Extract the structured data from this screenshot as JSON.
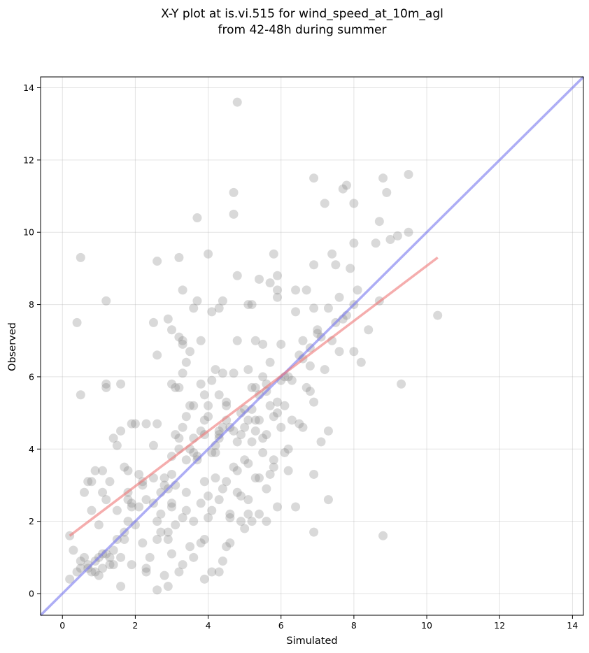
{
  "chart_data": {
    "type": "scatter",
    "title_lines": [
      "X-Y plot at is.vi.515 for wind_speed_at_10m_agl",
      "from 42-48h during summer"
    ],
    "xlabel": "Simulated",
    "ylabel": "Observed",
    "xlim": [
      -0.6,
      14.3
    ],
    "ylim": [
      -0.6,
      14.3
    ],
    "xticks": [
      "0",
      "2",
      "4",
      "6",
      "8",
      "10",
      "12",
      "14"
    ],
    "yticks": [
      "0",
      "2",
      "4",
      "6",
      "8",
      "10",
      "12",
      "14"
    ],
    "grid": true,
    "point_color": "#808080",
    "identity_line_color": "#7777ee",
    "fit_line_color": "#ee7777",
    "fit_line": {
      "x": [
        0.2,
        10.3
      ],
      "y": [
        1.6,
        9.3
      ]
    },
    "points": [
      [
        0.2,
        1.6
      ],
      [
        0.2,
        0.4
      ],
      [
        0.3,
        1.2
      ],
      [
        0.4,
        0.6
      ],
      [
        0.5,
        0.9
      ],
      [
        0.6,
        1.0
      ],
      [
        0.7,
        0.7
      ],
      [
        0.6,
        2.8
      ],
      [
        0.7,
        3.1
      ],
      [
        0.8,
        3.1
      ],
      [
        0.8,
        2.3
      ],
      [
        0.9,
        3.4
      ],
      [
        0.9,
        0.6
      ],
      [
        1.0,
        1.0
      ],
      [
        1.0,
        1.9
      ],
      [
        1.1,
        2.8
      ],
      [
        1.1,
        3.4
      ],
      [
        1.2,
        2.6
      ],
      [
        1.2,
        1.1
      ],
      [
        1.3,
        0.8
      ],
      [
        1.3,
        3.1
      ],
      [
        1.4,
        4.3
      ],
      [
        1.4,
        1.2
      ],
      [
        1.5,
        4.1
      ],
      [
        1.6,
        4.5
      ],
      [
        1.6,
        1.0
      ],
      [
        1.7,
        1.5
      ],
      [
        1.7,
        3.5
      ],
      [
        1.8,
        3.4
      ],
      [
        1.8,
        2.6
      ],
      [
        1.9,
        2.4
      ],
      [
        1.6,
        0.2
      ],
      [
        1.2,
        5.8
      ],
      [
        1.2,
        5.7
      ],
      [
        1.6,
        5.8
      ],
      [
        1.2,
        8.1
      ],
      [
        0.5,
        9.3
      ],
      [
        0.4,
        7.5
      ],
      [
        0.5,
        5.5
      ],
      [
        2.0,
        4.7
      ],
      [
        2.1,
        3.3
      ],
      [
        2.2,
        3.1
      ],
      [
        2.2,
        1.4
      ],
      [
        2.3,
        0.6
      ],
      [
        2.4,
        1.0
      ],
      [
        2.5,
        3.2
      ],
      [
        2.5,
        4.1
      ],
      [
        2.6,
        2.0
      ],
      [
        2.7,
        2.2
      ],
      [
        2.7,
        1.7
      ],
      [
        2.8,
        3.0
      ],
      [
        2.8,
        0.5
      ],
      [
        2.9,
        0.2
      ],
      [
        2.9,
        1.7
      ],
      [
        3.0,
        2.4
      ],
      [
        3.0,
        3.8
      ],
      [
        3.1,
        4.4
      ],
      [
        3.1,
        5.7
      ],
      [
        3.2,
        4.0
      ],
      [
        3.2,
        7.1
      ],
      [
        3.3,
        7.0
      ],
      [
        3.3,
        6.1
      ],
      [
        3.4,
        6.4
      ],
      [
        3.4,
        2.8
      ],
      [
        3.5,
        1.3
      ],
      [
        3.5,
        4.0
      ],
      [
        3.6,
        5.2
      ],
      [
        3.7,
        3.8
      ],
      [
        3.8,
        4.5
      ],
      [
        3.8,
        2.5
      ],
      [
        3.9,
        1.5
      ],
      [
        3.9,
        4.8
      ],
      [
        4.0,
        5.2
      ],
      [
        4.0,
        2.7
      ],
      [
        4.1,
        2.3
      ],
      [
        4.2,
        3.9
      ],
      [
        4.2,
        6.2
      ],
      [
        4.3,
        4.4
      ],
      [
        4.3,
        2.6
      ],
      [
        4.4,
        0.9
      ],
      [
        4.5,
        5.2
      ],
      [
        4.5,
        3.1
      ],
      [
        4.6,
        2.2
      ],
      [
        4.6,
        1.4
      ],
      [
        4.7,
        4.5
      ],
      [
        4.7,
        6.1
      ],
      [
        4.8,
        7.0
      ],
      [
        4.8,
        2.8
      ],
      [
        4.9,
        4.4
      ],
      [
        4.9,
        2.0
      ],
      [
        5.0,
        3.7
      ],
      [
        5.0,
        5.1
      ],
      [
        5.1,
        6.2
      ],
      [
        5.1,
        2.6
      ],
      [
        5.2,
        4.2
      ],
      [
        5.2,
        5.7
      ],
      [
        5.3,
        4.8
      ],
      [
        5.3,
        3.2
      ],
      [
        5.4,
        5.5
      ],
      [
        5.4,
        8.7
      ],
      [
        5.5,
        3.9
      ],
      [
        5.5,
        6.9
      ],
      [
        5.6,
        4.4
      ],
      [
        5.6,
        2.0
      ],
      [
        5.7,
        5.2
      ],
      [
        5.7,
        6.4
      ],
      [
        5.8,
        4.9
      ],
      [
        5.8,
        3.7
      ],
      [
        5.9,
        5.0
      ],
      [
        5.9,
        8.2
      ],
      [
        6.0,
        4.6
      ],
      [
        6.0,
        6.9
      ],
      [
        6.1,
        5.2
      ],
      [
        6.1,
        3.9
      ],
      [
        6.2,
        3.4
      ],
      [
        6.3,
        4.8
      ],
      [
        6.4,
        7.8
      ],
      [
        6.4,
        2.4
      ],
      [
        6.5,
        6.6
      ],
      [
        6.6,
        4.6
      ],
      [
        6.7,
        5.7
      ],
      [
        6.8,
        6.3
      ],
      [
        6.9,
        3.3
      ],
      [
        6.9,
        1.7
      ],
      [
        7.0,
        7.2
      ],
      [
        7.1,
        7.1
      ],
      [
        7.1,
        4.2
      ],
      [
        7.2,
        6.2
      ],
      [
        7.3,
        2.6
      ],
      [
        7.3,
        4.5
      ],
      [
        7.4,
        9.4
      ],
      [
        7.5,
        9.1
      ],
      [
        7.6,
        6.7
      ],
      [
        7.7,
        7.6
      ],
      [
        7.8,
        7.7
      ],
      [
        7.9,
        9.0
      ],
      [
        8.0,
        6.7
      ],
      [
        8.0,
        8.0
      ],
      [
        8.1,
        8.4
      ],
      [
        8.2,
        6.4
      ],
      [
        8.4,
        7.3
      ],
      [
        8.7,
        8.1
      ],
      [
        8.8,
        1.6
      ],
      [
        9.0,
        9.8
      ],
      [
        9.2,
        9.9
      ],
      [
        9.3,
        5.8
      ],
      [
        9.5,
        10.0
      ],
      [
        9.5,
        11.6
      ],
      [
        10.3,
        7.7
      ],
      [
        8.9,
        11.1
      ],
      [
        8.8,
        11.5
      ],
      [
        8.6,
        9.7
      ],
      [
        8.7,
        10.3
      ],
      [
        8.0,
        10.8
      ],
      [
        8.0,
        9.7
      ],
      [
        7.8,
        11.3
      ],
      [
        7.7,
        11.2
      ],
      [
        7.2,
        10.8
      ],
      [
        6.9,
        11.5
      ],
      [
        6.9,
        9.1
      ],
      [
        6.9,
        7.9
      ],
      [
        6.7,
        8.4
      ],
      [
        6.4,
        8.4
      ],
      [
        5.9,
        8.4
      ],
      [
        5.8,
        9.4
      ],
      [
        5.9,
        8.8
      ],
      [
        5.7,
        8.6
      ],
      [
        5.2,
        8.0
      ],
      [
        5.1,
        8.0
      ],
      [
        4.8,
        8.8
      ],
      [
        4.7,
        11.1
      ],
      [
        4.7,
        10.5
      ],
      [
        4.8,
        13.6
      ],
      [
        3.7,
        10.4
      ],
      [
        4.0,
        9.4
      ],
      [
        3.2,
        9.3
      ],
      [
        2.6,
        9.2
      ],
      [
        2.9,
        7.6
      ],
      [
        2.5,
        7.5
      ],
      [
        3.0,
        7.3
      ],
      [
        3.6,
        7.9
      ],
      [
        3.7,
        8.1
      ],
      [
        3.8,
        7.0
      ],
      [
        4.1,
        7.8
      ],
      [
        4.3,
        7.9
      ],
      [
        4.4,
        8.1
      ],
      [
        3.3,
        8.4
      ],
      [
        2.6,
        6.6
      ],
      [
        3.5,
        6.7
      ],
      [
        3.3,
        6.9
      ],
      [
        1.9,
        4.7
      ],
      [
        2.3,
        4.7
      ],
      [
        2.6,
        4.7
      ],
      [
        2.2,
        3.0
      ],
      [
        1.8,
        2.8
      ],
      [
        1.5,
        2.3
      ],
      [
        1.1,
        1.1
      ],
      [
        0.9,
        0.9
      ],
      [
        0.7,
        0.8
      ],
      [
        1.0,
        0.5
      ],
      [
        1.4,
        0.8
      ],
      [
        1.9,
        0.8
      ],
      [
        2.3,
        0.7
      ],
      [
        2.6,
        0.1
      ],
      [
        3.0,
        1.1
      ],
      [
        3.2,
        0.6
      ],
      [
        3.3,
        0.8
      ],
      [
        3.6,
        1.0
      ],
      [
        3.8,
        1.4
      ],
      [
        3.9,
        0.4
      ],
      [
        4.1,
        0.6
      ],
      [
        4.3,
        0.6
      ],
      [
        4.5,
        1.3
      ],
      [
        4.6,
        2.1
      ],
      [
        4.9,
        2.7
      ],
      [
        5.1,
        2.2
      ],
      [
        5.2,
        2.0
      ],
      [
        5.0,
        1.8
      ],
      [
        5.6,
        2.9
      ],
      [
        5.7,
        3.3
      ],
      [
        5.5,
        4.3
      ],
      [
        5.4,
        4.8
      ],
      [
        5.3,
        4.5
      ],
      [
        5.1,
        4.8
      ],
      [
        5.0,
        4.6
      ],
      [
        4.6,
        4.6
      ],
      [
        4.5,
        5.3
      ],
      [
        4.3,
        5.5
      ],
      [
        4.0,
        4.9
      ],
      [
        3.9,
        5.5
      ],
      [
        3.8,
        5.8
      ],
      [
        3.5,
        5.2
      ],
      [
        3.4,
        4.9
      ],
      [
        3.3,
        4.6
      ],
      [
        3.2,
        4.3
      ],
      [
        3.0,
        3.3
      ],
      [
        2.8,
        3.2
      ],
      [
        2.7,
        2.8
      ],
      [
        2.5,
        2.5
      ],
      [
        2.3,
        2.6
      ],
      [
        2.1,
        2.4
      ],
      [
        1.9,
        2.5
      ],
      [
        1.7,
        1.7
      ],
      [
        1.5,
        1.5
      ],
      [
        1.3,
        1.0
      ],
      [
        1.1,
        0.7
      ],
      [
        4.3,
        4.3
      ],
      [
        4.1,
        3.9
      ],
      [
        4.4,
        4.6
      ],
      [
        4.8,
        4.2
      ],
      [
        5.3,
        5.7
      ],
      [
        5.6,
        5.8
      ],
      [
        6.0,
        5.9
      ],
      [
        6.3,
        5.9
      ],
      [
        6.6,
        6.5
      ],
      [
        6.8,
        6.8
      ],
      [
        7.3,
        7.9
      ],
      [
        7.4,
        7.0
      ],
      [
        6.1,
        6.0
      ],
      [
        5.9,
        5.3
      ],
      [
        5.6,
        5.6
      ],
      [
        5.2,
        5.1
      ],
      [
        4.9,
        5.0
      ],
      [
        4.5,
        4.8
      ],
      [
        4.2,
        4.1
      ],
      [
        3.9,
        4.4
      ],
      [
        3.6,
        3.9
      ],
      [
        3.4,
        3.7
      ],
      [
        3.1,
        3.0
      ],
      [
        2.9,
        2.9
      ],
      [
        2.0,
        1.9
      ],
      [
        1.8,
        2.0
      ],
      [
        0.8,
        0.6
      ],
      [
        0.5,
        0.7
      ],
      [
        3.0,
        5.8
      ],
      [
        3.2,
        5.7
      ],
      [
        4.1,
        5.9
      ],
      [
        4.4,
        6.1
      ],
      [
        5.3,
        7.0
      ],
      [
        5.5,
        6.0
      ],
      [
        6.2,
        6.0
      ],
      [
        6.6,
        7.0
      ],
      [
        7.0,
        7.3
      ],
      [
        7.6,
        8.2
      ],
      [
        3.0,
        2.5
      ],
      [
        3.4,
        2.3
      ],
      [
        3.6,
        2.0
      ],
      [
        3.3,
        2.1
      ],
      [
        2.6,
        1.5
      ],
      [
        2.9,
        1.5
      ],
      [
        3.1,
        1.9
      ],
      [
        4.0,
        2.1
      ],
      [
        4.4,
        2.9
      ],
      [
        4.8,
        3.4
      ],
      [
        5.1,
        3.6
      ],
      [
        5.4,
        3.2
      ],
      [
        5.8,
        3.5
      ],
      [
        6.2,
        4.0
      ],
      [
        6.5,
        4.7
      ],
      [
        3.7,
        3.7
      ],
      [
        3.6,
        4.3
      ],
      [
        3.9,
        3.1
      ],
      [
        4.2,
        3.2
      ],
      [
        4.7,
        3.5
      ],
      [
        6.8,
        5.6
      ],
      [
        6.9,
        5.3
      ],
      [
        7.5,
        7.5
      ],
      [
        5.9,
        2.4
      ],
      [
        5.4,
        2.2
      ],
      [
        4.3,
        4.5
      ]
    ]
  }
}
